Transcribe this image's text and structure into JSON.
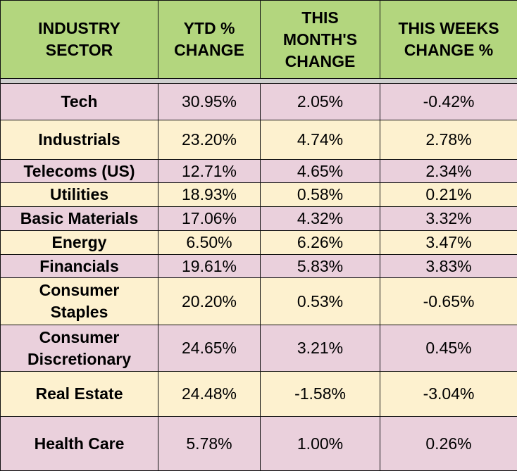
{
  "chart_data": {
    "type": "table",
    "headers": [
      "INDUSTRY SECTOR",
      "YTD % CHANGE",
      "THIS MONTH'S CHANGE",
      "THIS WEEKS CHANGE %"
    ],
    "header_lines": [
      [
        "INDUSTRY",
        "SECTOR"
      ],
      [
        "YTD %",
        "CHANGE"
      ],
      [
        "THIS",
        "MONTH'S",
        "CHANGE"
      ],
      [
        "THIS WEEKS",
        "CHANGE %"
      ]
    ],
    "rows": [
      {
        "sector_lines": [
          "Tech"
        ],
        "sector": "Tech",
        "ytd": "30.95%",
        "month": "2.05%",
        "week": "-0.42%"
      },
      {
        "sector_lines": [
          "Industrials"
        ],
        "sector": "Industrials",
        "ytd": "23.20%",
        "month": "4.74%",
        "week": "2.78%"
      },
      {
        "sector_lines": [
          "Telecoms (US)"
        ],
        "sector": "Telecoms (US)",
        "ytd": "12.71%",
        "month": "4.65%",
        "week": "2.34%"
      },
      {
        "sector_lines": [
          "Utilities"
        ],
        "sector": "Utilities",
        "ytd": "18.93%",
        "month": "0.58%",
        "week": "0.21%"
      },
      {
        "sector_lines": [
          "Basic Materials"
        ],
        "sector": "Basic Materials",
        "ytd": "17.06%",
        "month": "4.32%",
        "week": "3.32%"
      },
      {
        "sector_lines": [
          "Energy"
        ],
        "sector": "Energy",
        "ytd": "6.50%",
        "month": "6.26%",
        "week": "3.47%"
      },
      {
        "sector_lines": [
          "Financials"
        ],
        "sector": "Financials",
        "ytd": "19.61%",
        "month": "5.83%",
        "week": "3.83%"
      },
      {
        "sector_lines": [
          "Consumer",
          "Staples"
        ],
        "sector": "Consumer Staples",
        "ytd": "20.20%",
        "month": "0.53%",
        "week": "-0.65%"
      },
      {
        "sector_lines": [
          "Consumer",
          "Discretionary"
        ],
        "sector": "Consumer Discretionary",
        "ytd": "24.65%",
        "month": "3.21%",
        "week": "0.45%"
      },
      {
        "sector_lines": [
          "Real Estate"
        ],
        "sector": "Real Estate",
        "ytd": "24.48%",
        "month": "-1.58%",
        "week": "-3.04%"
      },
      {
        "sector_lines": [
          "Health Care"
        ],
        "sector": "Health Care",
        "ytd": "5.78%",
        "month": "1.00%",
        "week": "0.26%"
      }
    ]
  },
  "colors": {
    "header_bg": "#b3d67e",
    "row_pink": "#ead0dc",
    "row_cream": "#fdf1cf",
    "separator": "#cfcfcf",
    "border": "#111111"
  }
}
